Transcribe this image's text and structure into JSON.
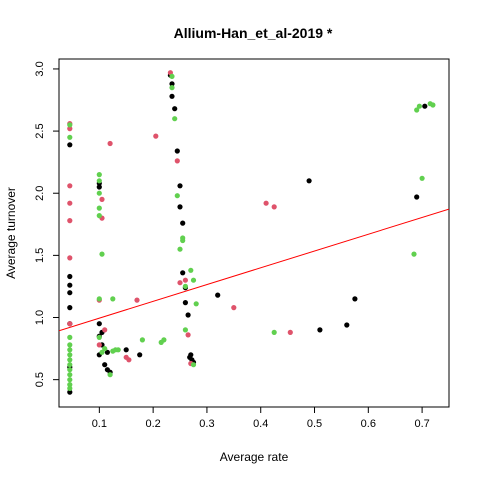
{
  "chart_data": {
    "type": "scatter",
    "title": "Allium-Han_et_al-2019 *",
    "xlabel": "Average rate",
    "ylabel": "Average turnover",
    "xlim": [
      0.025,
      0.75
    ],
    "ylim": [
      0.28,
      3.08
    ],
    "x_ticks": [
      0.1,
      0.2,
      0.3,
      0.4,
      0.5,
      0.6,
      0.7
    ],
    "x_tick_labels": [
      "0.1",
      "0.2",
      "0.3",
      "0.4",
      "0.5",
      "0.6",
      "0.7"
    ],
    "y_ticks": [
      0.5,
      1.0,
      1.5,
      2.0,
      2.5,
      3.0
    ],
    "y_tick_labels": [
      "0.5",
      "1.0",
      "1.5",
      "2.0",
      "2.5",
      "3.0"
    ],
    "grid": false,
    "legend": "none",
    "colors": {
      "black": "#000000",
      "red": "#DF536B",
      "green": "#61D04F",
      "line": "#FF0000",
      "frame": "#000000"
    },
    "series": [
      {
        "name": "black",
        "color": "#000000",
        "points": [
          [
            0.045,
            2.39
          ],
          [
            0.045,
            1.33
          ],
          [
            0.045,
            1.26
          ],
          [
            0.045,
            1.2
          ],
          [
            0.045,
            1.08
          ],
          [
            0.045,
            0.95
          ],
          [
            0.045,
            0.6
          ],
          [
            0.045,
            0.4
          ],
          [
            0.1,
            2.08
          ],
          [
            0.1,
            2.05
          ],
          [
            0.1,
            0.95
          ],
          [
            0.1,
            0.85
          ],
          [
            0.1,
            0.7
          ],
          [
            0.105,
            0.88
          ],
          [
            0.105,
            0.78
          ],
          [
            0.11,
            0.62
          ],
          [
            0.115,
            0.72
          ],
          [
            0.115,
            0.58
          ],
          [
            0.12,
            0.56
          ],
          [
            0.15,
            0.74
          ],
          [
            0.175,
            0.7
          ],
          [
            0.232,
            2.95
          ],
          [
            0.235,
            2.88
          ],
          [
            0.235,
            2.78
          ],
          [
            0.24,
            2.68
          ],
          [
            0.245,
            2.34
          ],
          [
            0.25,
            2.06
          ],
          [
            0.25,
            1.89
          ],
          [
            0.255,
            1.76
          ],
          [
            0.255,
            1.36
          ],
          [
            0.26,
            1.24
          ],
          [
            0.26,
            1.12
          ],
          [
            0.265,
            1.02
          ],
          [
            0.268,
            0.68
          ],
          [
            0.27,
            0.7
          ],
          [
            0.272,
            0.66
          ],
          [
            0.275,
            0.64
          ],
          [
            0.32,
            1.18
          ],
          [
            0.49,
            2.1
          ],
          [
            0.51,
            0.9
          ],
          [
            0.56,
            0.94
          ],
          [
            0.575,
            1.15
          ],
          [
            0.69,
            1.97
          ],
          [
            0.705,
            2.7
          ]
        ]
      },
      {
        "name": "red",
        "color": "#DF536B",
        "points": [
          [
            0.045,
            2.56
          ],
          [
            0.045,
            2.52
          ],
          [
            0.045,
            2.06
          ],
          [
            0.045,
            1.92
          ],
          [
            0.045,
            1.78
          ],
          [
            0.045,
            1.48
          ],
          [
            0.045,
            0.95
          ],
          [
            0.1,
            1.14
          ],
          [
            0.1,
            0.78
          ],
          [
            0.105,
            1.95
          ],
          [
            0.105,
            1.8
          ],
          [
            0.11,
            0.9
          ],
          [
            0.12,
            2.4
          ],
          [
            0.15,
            0.68
          ],
          [
            0.155,
            0.66
          ],
          [
            0.17,
            1.14
          ],
          [
            0.205,
            2.46
          ],
          [
            0.232,
            2.97
          ],
          [
            0.245,
            2.26
          ],
          [
            0.25,
            1.28
          ],
          [
            0.26,
            1.3
          ],
          [
            0.265,
            0.86
          ],
          [
            0.27,
            0.63
          ],
          [
            0.35,
            1.08
          ],
          [
            0.41,
            1.92
          ],
          [
            0.425,
            1.89
          ],
          [
            0.455,
            0.88
          ]
        ]
      },
      {
        "name": "green",
        "color": "#61D04F",
        "points": [
          [
            0.045,
            2.55
          ],
          [
            0.045,
            2.45
          ],
          [
            0.045,
            0.84
          ],
          [
            0.045,
            0.78
          ],
          [
            0.045,
            0.74
          ],
          [
            0.045,
            0.7
          ],
          [
            0.045,
            0.66
          ],
          [
            0.045,
            0.62
          ],
          [
            0.045,
            0.58
          ],
          [
            0.045,
            0.54
          ],
          [
            0.045,
            0.5
          ],
          [
            0.045,
            0.46
          ],
          [
            0.045,
            0.43
          ],
          [
            0.1,
            2.15
          ],
          [
            0.1,
            2.1
          ],
          [
            0.1,
            2.0
          ],
          [
            0.1,
            1.88
          ],
          [
            0.1,
            1.82
          ],
          [
            0.1,
            1.15
          ],
          [
            0.1,
            0.84
          ],
          [
            0.105,
            1.51
          ],
          [
            0.105,
            0.72
          ],
          [
            0.11,
            0.75
          ],
          [
            0.12,
            0.54
          ],
          [
            0.125,
            0.73
          ],
          [
            0.13,
            0.74
          ],
          [
            0.125,
            1.15
          ],
          [
            0.135,
            0.74
          ],
          [
            0.18,
            0.82
          ],
          [
            0.215,
            0.8
          ],
          [
            0.22,
            0.82
          ],
          [
            0.235,
            2.94
          ],
          [
            0.235,
            2.85
          ],
          [
            0.24,
            2.6
          ],
          [
            0.245,
            1.98
          ],
          [
            0.25,
            1.55
          ],
          [
            0.255,
            1.62
          ],
          [
            0.255,
            1.64
          ],
          [
            0.26,
            1.25
          ],
          [
            0.26,
            0.9
          ],
          [
            0.27,
            1.38
          ],
          [
            0.275,
            1.3
          ],
          [
            0.275,
            0.62
          ],
          [
            0.28,
            1.11
          ],
          [
            0.425,
            0.88
          ],
          [
            0.685,
            1.51
          ],
          [
            0.69,
            2.67
          ],
          [
            0.695,
            2.7
          ],
          [
            0.7,
            2.12
          ],
          [
            0.715,
            2.72
          ],
          [
            0.72,
            2.71
          ]
        ]
      }
    ],
    "trend_line": {
      "intercept": 0.86,
      "slope": 1.35,
      "color": "#FF0000"
    }
  }
}
